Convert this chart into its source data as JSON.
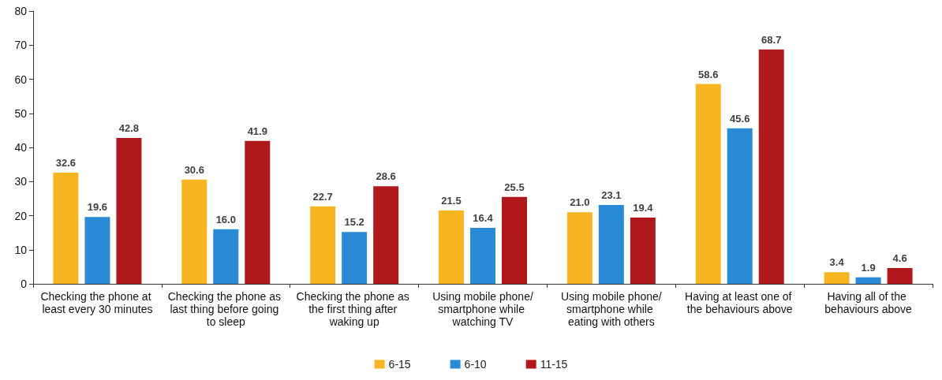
{
  "chart_data": {
    "type": "bar",
    "categories": [
      "Checking the phone at least every 30 minutes",
      "Checking the phone as last thing before going to sleep",
      "Checking the phone as the first thing after waking up",
      "Using mobile phone/smartphone while watching TV",
      "Using mobile phone/smartphone while eating with others",
      "Having at least one of the behaviours above",
      "Having all of the behaviours above"
    ],
    "series": [
      {
        "name": "6-15",
        "color": "#f7b521",
        "values": [
          32.6,
          30.6,
          22.7,
          21.5,
          21.0,
          58.6,
          3.4
        ]
      },
      {
        "name": "6-10",
        "color": "#2b8ad6",
        "values": [
          19.6,
          16.0,
          15.2,
          16.4,
          23.1,
          45.6,
          1.9
        ]
      },
      {
        "name": "11-15",
        "color": "#b0191c",
        "values": [
          42.8,
          41.9,
          28.6,
          25.5,
          19.4,
          68.7,
          4.6
        ]
      }
    ],
    "value_labels": [
      [
        "32.6",
        "30.6",
        "22.7",
        "21.5",
        "21.0",
        "58.6",
        "3.4"
      ],
      [
        "19.6",
        "16.0",
        "15.2",
        "16.4",
        "23.1",
        "45.6",
        "1.9"
      ],
      [
        "42.8",
        "41.9",
        "28.6",
        "25.5",
        "19.4",
        "68.7",
        "4.6"
      ]
    ],
    "ylim": [
      0,
      80
    ],
    "yticks": [
      0,
      10,
      20,
      30,
      40,
      50,
      60,
      70,
      80
    ],
    "grid": false,
    "legend": "bottom"
  }
}
